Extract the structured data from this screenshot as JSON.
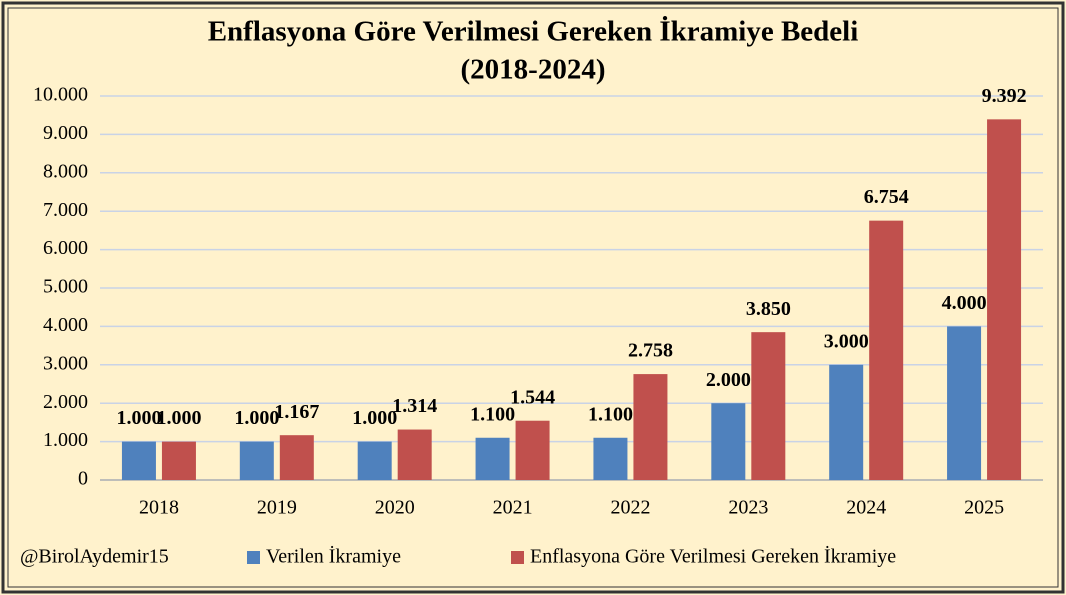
{
  "chart_data": {
    "type": "bar",
    "title": "Enflasyona Göre Verilmesi Gereken İkramiye Bedeli",
    "subtitle": "(2018-2024)",
    "annotation": "@BirolAydemir15",
    "categories": [
      "2018",
      "2019",
      "2020",
      "2021",
      "2022",
      "2023",
      "2024",
      "2025"
    ],
    "series": [
      {
        "name": "Verilen İkramiye",
        "color": "#4f81bd",
        "label_color": "#4f81bd",
        "values": [
          1000,
          1000,
          1000,
          1100,
          1100,
          2000,
          3000,
          4000
        ],
        "value_labels": [
          "1.000",
          "1.000",
          "1.000",
          "1.100",
          "1.100",
          "2.000",
          "3.000",
          "4.000"
        ]
      },
      {
        "name": "Enflasyona Göre Verilmesi Gereken İkramiye",
        "color": "#c0504d",
        "label_color": "#c00000",
        "values": [
          1000,
          1167,
          1314,
          1544,
          2758,
          3850,
          6754,
          9392
        ],
        "value_labels": [
          "1.000",
          "1.167",
          "1.314",
          "1.544",
          "2.758",
          "3.850",
          "6.754",
          "9.392"
        ]
      }
    ],
    "ylim": [
      0,
      10000
    ],
    "yticks": [
      0,
      {
        "value": 1000,
        "label": "1.000"
      },
      {
        "value": 2000,
        "label": "2.000"
      },
      {
        "value": 3000,
        "label": "3.000"
      },
      {
        "value": 4000,
        "label": "4.000"
      },
      {
        "value": 5000,
        "label": "5.000"
      },
      {
        "value": 6000,
        "label": "6.000"
      },
      {
        "value": 7000,
        "label": "7.000"
      },
      {
        "value": 8000,
        "label": "8.000"
      },
      {
        "value": 9000,
        "label": "9.000"
      },
      {
        "value": 10000,
        "label": "10.000"
      }
    ],
    "grid": true,
    "legend": "bottom"
  }
}
